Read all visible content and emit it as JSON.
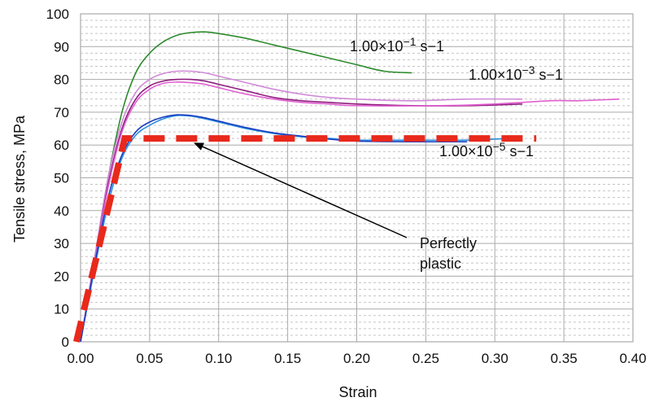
{
  "chart_data": {
    "type": "line",
    "xlabel": "Strain",
    "ylabel": "Tensile stress, MPa",
    "xlim": [
      0,
      0.4
    ],
    "ylim": [
      0,
      100
    ],
    "x_ticks": [
      "0.00",
      "0.05",
      "0.10",
      "0.15",
      "0.20",
      "0.25",
      "0.30",
      "0.35",
      "0.40"
    ],
    "y_ticks": [
      "0",
      "10",
      "20",
      "30",
      "40",
      "50",
      "60",
      "70",
      "80",
      "90",
      "100"
    ],
    "grid": "on",
    "series": [
      {
        "color": "#2e8b2e",
        "points": [
          [
            0.0,
            0
          ],
          [
            0.01,
            25
          ],
          [
            0.02,
            50
          ],
          [
            0.03,
            70
          ],
          [
            0.04,
            82
          ],
          [
            0.05,
            88
          ],
          [
            0.06,
            91.5
          ],
          [
            0.07,
            93.5
          ],
          [
            0.08,
            94.3
          ],
          [
            0.09,
            94.5
          ],
          [
            0.1,
            94
          ],
          [
            0.12,
            92.5
          ],
          [
            0.14,
            90.5
          ],
          [
            0.16,
            88.5
          ],
          [
            0.18,
            86.5
          ],
          [
            0.2,
            84.5
          ],
          [
            0.22,
            82.5
          ],
          [
            0.24,
            82
          ]
        ]
      },
      {
        "color": "#d08ad8",
        "points": [
          [
            0.0,
            0
          ],
          [
            0.01,
            25
          ],
          [
            0.02,
            50
          ],
          [
            0.03,
            67
          ],
          [
            0.04,
            76
          ],
          [
            0.05,
            80
          ],
          [
            0.06,
            81.8
          ],
          [
            0.07,
            82.5
          ],
          [
            0.08,
            82.5
          ],
          [
            0.09,
            82
          ],
          [
            0.1,
            81
          ],
          [
            0.12,
            79
          ],
          [
            0.14,
            77
          ],
          [
            0.16,
            75.5
          ],
          [
            0.18,
            74.5
          ],
          [
            0.2,
            74
          ],
          [
            0.24,
            73.5
          ],
          [
            0.28,
            74
          ],
          [
            0.32,
            74
          ]
        ]
      },
      {
        "color": "#8e1e7e",
        "points": [
          [
            0.0,
            0
          ],
          [
            0.01,
            24
          ],
          [
            0.02,
            48
          ],
          [
            0.03,
            65
          ],
          [
            0.04,
            74
          ],
          [
            0.05,
            78
          ],
          [
            0.06,
            79.5
          ],
          [
            0.07,
            80
          ],
          [
            0.08,
            80
          ],
          [
            0.09,
            79.5
          ],
          [
            0.1,
            78.5
          ],
          [
            0.12,
            76.5
          ],
          [
            0.14,
            74.5
          ],
          [
            0.16,
            73.5
          ],
          [
            0.18,
            73
          ],
          [
            0.2,
            72.5
          ],
          [
            0.24,
            72
          ],
          [
            0.28,
            72
          ],
          [
            0.32,
            72.5
          ]
        ]
      },
      {
        "color": "#e060d0",
        "points": [
          [
            0.0,
            0
          ],
          [
            0.01,
            24
          ],
          [
            0.02,
            47
          ],
          [
            0.03,
            64
          ],
          [
            0.04,
            73
          ],
          [
            0.05,
            77
          ],
          [
            0.06,
            78.8
          ],
          [
            0.07,
            79.2
          ],
          [
            0.08,
            79
          ],
          [
            0.09,
            78.5
          ],
          [
            0.1,
            77.5
          ],
          [
            0.12,
            75.5
          ],
          [
            0.14,
            74
          ],
          [
            0.16,
            73
          ],
          [
            0.18,
            72.5
          ],
          [
            0.2,
            72
          ],
          [
            0.26,
            72
          ],
          [
            0.3,
            72.5
          ],
          [
            0.34,
            73.5
          ],
          [
            0.36,
            73.5
          ],
          [
            0.39,
            74
          ]
        ]
      },
      {
        "color": "#2a8fe0",
        "points": [
          [
            0.0,
            0
          ],
          [
            0.01,
            22
          ],
          [
            0.02,
            42
          ],
          [
            0.03,
            56
          ],
          [
            0.04,
            63
          ],
          [
            0.05,
            66
          ],
          [
            0.06,
            68
          ],
          [
            0.07,
            69
          ],
          [
            0.08,
            68.8
          ],
          [
            0.09,
            68
          ],
          [
            0.1,
            67
          ],
          [
            0.12,
            65
          ],
          [
            0.14,
            63.5
          ],
          [
            0.16,
            62.5
          ],
          [
            0.18,
            62
          ],
          [
            0.2,
            61.5
          ],
          [
            0.24,
            61.5
          ],
          [
            0.28,
            61.5
          ],
          [
            0.31,
            62
          ]
        ]
      },
      {
        "color": "#1a3fc0",
        "points": [
          [
            0.0,
            0
          ],
          [
            0.01,
            23
          ],
          [
            0.02,
            44
          ],
          [
            0.03,
            57
          ],
          [
            0.04,
            64
          ],
          [
            0.05,
            67
          ],
          [
            0.06,
            68.5
          ],
          [
            0.07,
            69.2
          ],
          [
            0.08,
            69
          ],
          [
            0.09,
            68.3
          ],
          [
            0.1,
            67.3
          ],
          [
            0.12,
            65.3
          ],
          [
            0.14,
            63.7
          ],
          [
            0.16,
            62.7
          ],
          [
            0.18,
            61.8
          ],
          [
            0.2,
            61.2
          ],
          [
            0.24,
            61
          ],
          [
            0.28,
            61
          ]
        ]
      }
    ],
    "perfectly_plastic": {
      "color": "#e8291c",
      "points": [
        [
          -0.003,
          0
        ],
        [
          0.032,
          62
        ],
        [
          0.33,
          62
        ]
      ]
    },
    "annotations": [
      {
        "key": "rate_high_prefix",
        "text": "1.00×10",
        "sup": "−1",
        "suffix": " s−1"
      },
      {
        "key": "rate_mid_prefix",
        "text": "1.00×10",
        "sup": "−3",
        "suffix": "  s−1"
      },
      {
        "key": "rate_low_prefix",
        "text": "1.00×10",
        "sup": "−5",
        "suffix": " s−1"
      }
    ],
    "callout": {
      "line1": "Perfectly",
      "line2": "plastic",
      "arrow_to": [
        0.083,
        62
      ]
    }
  }
}
